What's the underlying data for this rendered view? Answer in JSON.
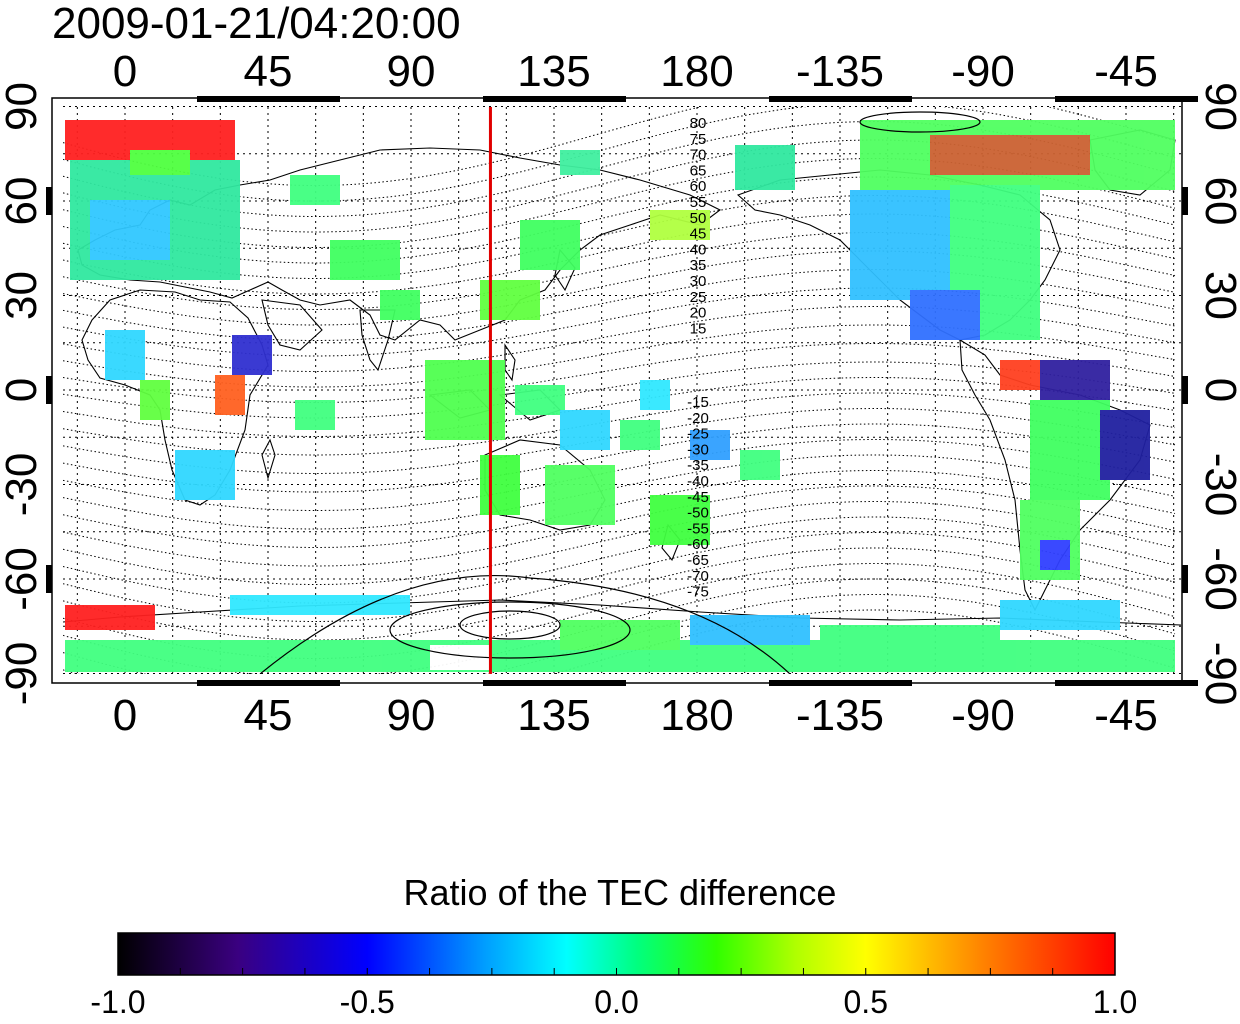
{
  "title": "2009-01-21/04:20:00",
  "map": {
    "lon_ticks_bottom": [
      "0",
      "45",
      "90",
      "135",
      "180",
      "-135",
      "-90",
      "-45"
    ],
    "lon_ticks_top": [
      "0",
      "45",
      "90",
      "135",
      "180",
      "-135",
      "-90",
      "-45"
    ],
    "lat_ticks_left": [
      "90",
      "60",
      "30",
      "0",
      "-30",
      "-60",
      "-90"
    ],
    "lat_ticks_right": [
      "90",
      "60",
      "30",
      "0",
      "-30",
      "-60",
      "-90"
    ],
    "contour_labels_north": [
      "80",
      "75",
      "70",
      "65",
      "60",
      "55",
      "50",
      "45",
      "40",
      "35",
      "30",
      "25",
      "20",
      "15"
    ],
    "contour_labels_south": [
      "-15",
      "-20",
      "-25",
      "-30",
      "-35",
      "-40",
      "-45",
      "-50",
      "-55",
      "-60",
      "-65",
      "-70",
      "-75"
    ],
    "marker_line_longitude": 115,
    "marker_line_color": "#e00000"
  },
  "colorbar": {
    "title": "Ratio of the TEC difference",
    "ticks": [
      "-1.0",
      "-0.5",
      "0.0",
      "0.5",
      "1.0"
    ],
    "min": -1.0,
    "max": 1.0,
    "colors": [
      "#000000",
      "#3a0080",
      "#0000ff",
      "#00a0ff",
      "#00ffff",
      "#00ff80",
      "#30ff00",
      "#b0ff00",
      "#ffff00",
      "#ff8000",
      "#ff0000"
    ]
  }
}
